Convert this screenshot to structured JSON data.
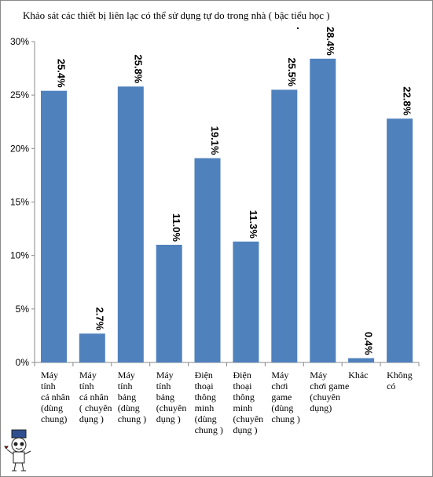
{
  "chart_data": {
    "type": "bar",
    "title": "Khảo sát các thiết bị liên lạc có thể sử dụng tự do trong nhà ( bậc tiểu học )",
    "categories": [
      [
        "Máy",
        "tính",
        "cá nhân",
        "(dùng",
        "chung)"
      ],
      [
        "Máy",
        "tính",
        "cá nhân",
        "( chuyên",
        "dụng )"
      ],
      [
        "Máy",
        "tính",
        "bảng",
        "(dùng",
        "chung )"
      ],
      [
        "Máy",
        "tính",
        "bảng",
        "(chuyên",
        "dụng )"
      ],
      [
        "Điện",
        "thoại",
        "thông",
        "minh",
        "(dùng",
        "chung )"
      ],
      [
        "Điện",
        "thoại",
        "thông",
        "minh",
        "(chuyên",
        "dụng )"
      ],
      [
        "Máy",
        "chơi",
        "game",
        "(dùng",
        "chung )"
      ],
      [
        "Máy",
        "chơi game",
        "(chuyên",
        "dụng)"
      ],
      [
        "Khác"
      ],
      [
        "Không",
        "có"
      ]
    ],
    "values": [
      25.4,
      2.7,
      25.8,
      11.0,
      19.1,
      11.3,
      25.5,
      28.4,
      0.4,
      22.8
    ],
    "data_labels": [
      "25.4%",
      "2.7%",
      "25.8%",
      "11.0%",
      "19.1%",
      "11.3%",
      "25.5%",
      "28.4%",
      "0.4%",
      "22.8%"
    ],
    "yticks": [
      "0%",
      "5%",
      "10%",
      "15%",
      "20%",
      "25%",
      "30%"
    ],
    "ylim": [
      0,
      30
    ],
    "grid": false,
    "bar_color": "#4F81BD"
  }
}
